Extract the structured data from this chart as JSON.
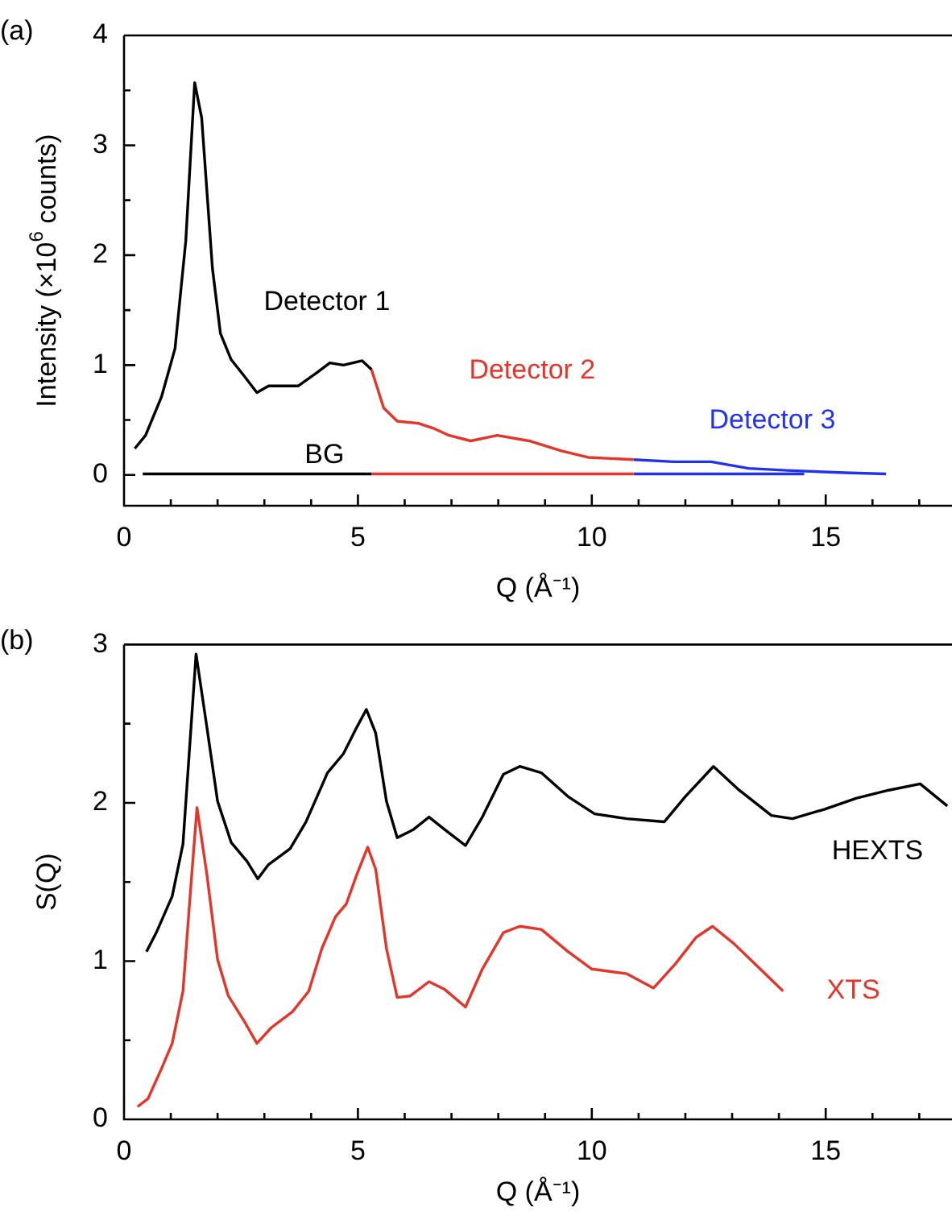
{
  "chart_data": [
    {
      "type": "line",
      "title": "(a)",
      "xlabel": "Q (Å⁻¹)",
      "ylabel": "Intensity (×10$^{6}$ counts)",
      "xlim": [
        0,
        17.7
      ],
      "ylim": [
        -0.28,
        4
      ],
      "xticks": [
        0,
        {
          "value": 1,
          "label": null
        },
        {
          "value": 2,
          "label": null
        },
        {
          "value": 3,
          "label": null
        },
        {
          "value": 4,
          "label": null
        },
        5,
        {
          "value": 6,
          "label": null
        },
        {
          "value": 7,
          "label": null
        },
        {
          "value": 8,
          "label": null
        },
        {
          "value": 9,
          "label": null
        },
        10,
        {
          "value": 11,
          "label": null
        },
        {
          "value": 12,
          "label": null
        },
        {
          "value": 13,
          "label": null
        },
        {
          "value": 14,
          "label": null
        },
        15,
        {
          "value": 16,
          "label": null
        },
        {
          "value": 17,
          "label": null
        }
      ],
      "yticks": [
        0,
        {
          "value": 0.5,
          "label": null
        },
        1,
        {
          "value": 1.5,
          "label": null
        },
        2,
        {
          "value": 2.5,
          "label": null
        },
        3,
        {
          "value": 3.5,
          "label": null
        },
        4
      ],
      "series": [
        {
          "name": "Detector 1",
          "color": "#000000",
          "x": [
            0.23,
            0.46,
            0.8,
            1.09,
            1.32,
            1.51,
            1.66,
            1.89,
            2.06,
            2.29,
            2.57,
            2.84,
            3.09,
            3.32,
            3.72,
            4.12,
            4.4,
            4.69,
            5.09,
            5.29
          ],
          "values": [
            0.24,
            0.36,
            0.71,
            1.15,
            2.13,
            3.57,
            3.25,
            1.88,
            1.29,
            1.05,
            0.9,
            0.75,
            0.81,
            0.81,
            0.81,
            0.93,
            1.02,
            1.0,
            1.04,
            0.96
          ]
        },
        {
          "name": "Detector 2",
          "color": "#e5352b",
          "x": [
            5.29,
            5.55,
            5.84,
            6.29,
            6.64,
            6.95,
            7.41,
            7.98,
            8.66,
            9.35,
            9.92,
            10.89
          ],
          "values": [
            0.96,
            0.61,
            0.49,
            0.47,
            0.42,
            0.36,
            0.31,
            0.36,
            0.31,
            0.22,
            0.16,
            0.14
          ]
        },
        {
          "name": "Detector 3",
          "color": "#2233ee",
          "x": [
            10.89,
            11.75,
            12.55,
            13.35,
            14.26,
            15.4,
            16.29
          ],
          "values": [
            0.14,
            0.12,
            0.12,
            0.06,
            0.04,
            0.02,
            0.01
          ]
        },
        {
          "color": "#000000",
          "x": [
            0.4,
            5.29
          ],
          "values": [
            0.01,
            0.01
          ]
        },
        {
          "color": "#e5352b",
          "x": [
            5.29,
            10.89
          ],
          "values": [
            0.01,
            0.01
          ]
        },
        {
          "color": "#2233ee",
          "x": [
            10.89,
            14.54
          ],
          "values": [
            0.01,
            0.01
          ]
        }
      ],
      "annotations": [
        "BG"
      ]
    },
    {
      "type": "line",
      "title": "(b)",
      "xlabel": "Q (Å⁻¹)",
      "ylabel": "S(Q)",
      "xlim": [
        0,
        17.7
      ],
      "ylim": [
        0,
        3
      ],
      "xticks": [
        0,
        {
          "value": 1,
          "label": null
        },
        {
          "value": 2,
          "label": null
        },
        {
          "value": 3,
          "label": null
        },
        {
          "value": 4,
          "label": null
        },
        5,
        {
          "value": 6,
          "label": null
        },
        {
          "value": 7,
          "label": null
        },
        {
          "value": 8,
          "label": null
        },
        {
          "value": 9,
          "label": null
        },
        10,
        {
          "value": 11,
          "label": null
        },
        {
          "value": 12,
          "label": null
        },
        {
          "value": 13,
          "label": null
        },
        {
          "value": 14,
          "label": null
        },
        15,
        {
          "value": 16,
          "label": null
        },
        {
          "value": 17,
          "label": null
        }
      ],
      "yticks": [
        0,
        {
          "value": 0.5,
          "label": null
        },
        1,
        {
          "value": 1.5,
          "label": null
        },
        2,
        {
          "value": 2.5,
          "label": null
        },
        3
      ],
      "series": [
        {
          "name": "HEXTS",
          "color": "#000000",
          "x": [
            0.48,
            0.69,
            1.03,
            1.26,
            1.54,
            1.77,
            2.0,
            2.29,
            2.63,
            2.86,
            3.09,
            3.55,
            3.89,
            4.35,
            4.69,
            4.98,
            5.18,
            5.38,
            5.61,
            5.84,
            6.18,
            6.52,
            6.86,
            7.3,
            7.66,
            8.11,
            8.46,
            8.92,
            9.49,
            10.06,
            10.75,
            11.55,
            12.0,
            12.6,
            13.15,
            13.84,
            14.29,
            14.98,
            15.66,
            16.35,
            17.02,
            17.6
          ],
          "values": [
            1.06,
            1.18,
            1.41,
            1.74,
            2.94,
            2.48,
            2.01,
            1.75,
            1.63,
            1.52,
            1.61,
            1.71,
            1.88,
            2.19,
            2.31,
            2.48,
            2.59,
            2.44,
            2.01,
            1.78,
            1.83,
            1.91,
            1.83,
            1.73,
            1.91,
            2.18,
            2.23,
            2.19,
            2.04,
            1.93,
            1.9,
            1.88,
            2.04,
            2.23,
            2.08,
            1.92,
            1.9,
            1.96,
            2.03,
            2.08,
            2.12,
            1.98
          ]
        },
        {
          "name": "XTS",
          "color": "#e5352b",
          "x": [
            0.29,
            0.51,
            0.8,
            1.03,
            1.26,
            1.43,
            1.56,
            1.77,
            2.0,
            2.23,
            2.57,
            2.84,
            3.15,
            3.6,
            3.95,
            4.23,
            4.52,
            4.75,
            4.98,
            5.21,
            5.38,
            5.61,
            5.84,
            6.12,
            6.52,
            6.86,
            7.3,
            7.66,
            8.11,
            8.46,
            8.92,
            9.49,
            10.0,
            10.75,
            11.32,
            11.78,
            12.23,
            12.58,
            13.04,
            13.6,
            14.09
          ],
          "values": [
            0.08,
            0.13,
            0.32,
            0.48,
            0.81,
            1.48,
            1.97,
            1.55,
            1.01,
            0.78,
            0.62,
            0.48,
            0.58,
            0.68,
            0.81,
            1.08,
            1.28,
            1.36,
            1.55,
            1.72,
            1.58,
            1.08,
            0.77,
            0.78,
            0.87,
            0.82,
            0.71,
            0.95,
            1.18,
            1.22,
            1.2,
            1.06,
            0.95,
            0.92,
            0.83,
            0.98,
            1.15,
            1.22,
            1.11,
            0.95,
            0.81
          ]
        }
      ]
    }
  ]
}
